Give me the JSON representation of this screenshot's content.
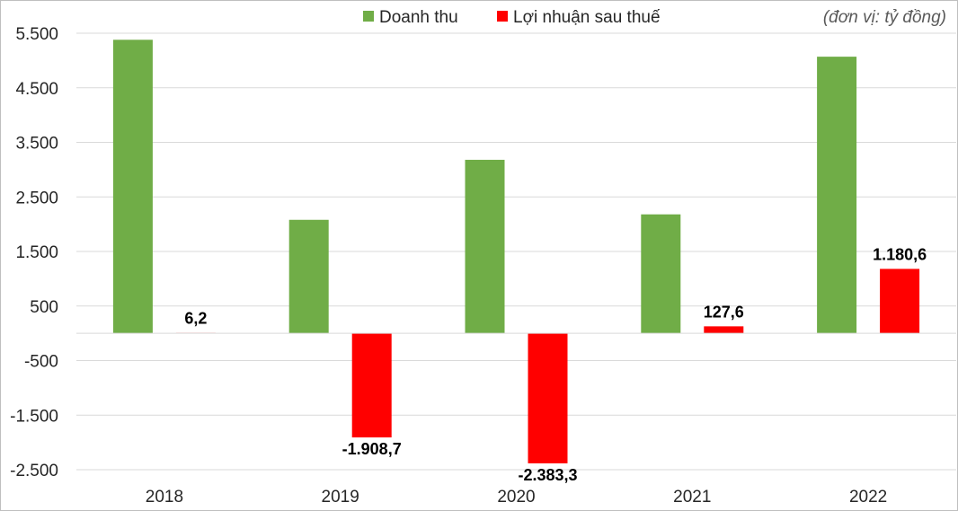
{
  "chart_data": {
    "type": "bar",
    "categories": [
      "2018",
      "2019",
      "2020",
      "2021",
      "2022"
    ],
    "series": [
      {
        "name": "Doanh thu",
        "color": "#70AD47",
        "values": [
          5380,
          2080,
          3180,
          2180,
          5070
        ]
      },
      {
        "name": "Lợi nhuận sau thuế",
        "color": "#FF0000",
        "values": [
          6.2,
          -1908.7,
          -2383.3,
          127.6,
          1180.6
        ]
      }
    ],
    "data_labels": {
      "series_index": 1,
      "labels": [
        "6,2",
        "-1.908,7",
        "-2.383,3",
        "127,6",
        "1.180,6"
      ]
    },
    "y_ticks": [
      {
        "value": 5500,
        "label": "5.500"
      },
      {
        "value": 4500,
        "label": "4.500"
      },
      {
        "value": 3500,
        "label": "3.500"
      },
      {
        "value": 2500,
        "label": "2.500"
      },
      {
        "value": 1500,
        "label": "1.500"
      },
      {
        "value": 500,
        "label": "500"
      },
      {
        "value": -500,
        "label": "-500"
      },
      {
        "value": -1500,
        "label": "-1.500"
      },
      {
        "value": -2500,
        "label": "-2.500"
      }
    ],
    "ylim": [
      -2500,
      5500
    ],
    "grid": true,
    "legend_position": "top-center",
    "unit_note": "(đơn vị: tỷ đồng)",
    "title": "",
    "xlabel": "",
    "ylabel": ""
  }
}
